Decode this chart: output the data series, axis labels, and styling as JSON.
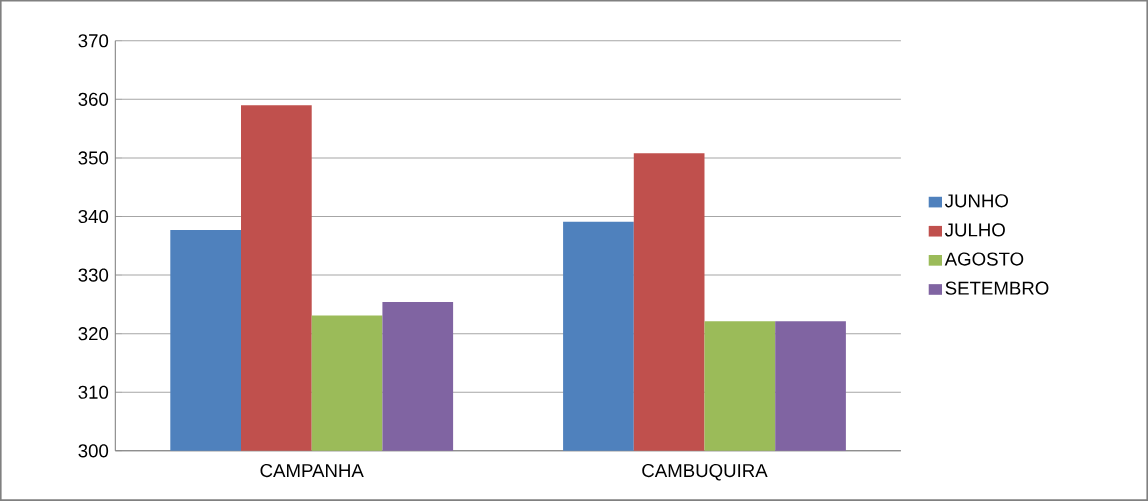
{
  "chart_data": {
    "type": "bar",
    "categories": [
      "CAMPANHA",
      "CAMBUQUIRA"
    ],
    "series": [
      {
        "name": "JUNHO",
        "color": "#4f81bd",
        "values": [
          337.7,
          339.1
        ]
      },
      {
        "name": "JULHO",
        "color": "#c0504d",
        "values": [
          359.0,
          350.8
        ]
      },
      {
        "name": "AGOSTO",
        "color": "#9bbb59",
        "values": [
          323.1,
          322.1
        ]
      },
      {
        "name": "SETEMBRO",
        "color": "#8064a2",
        "values": [
          325.4,
          322.1
        ]
      }
    ],
    "ylim": [
      300,
      370
    ],
    "yticks": [
      300,
      310,
      320,
      330,
      340,
      350,
      360,
      370
    ],
    "grid": "y",
    "legend": "right"
  }
}
